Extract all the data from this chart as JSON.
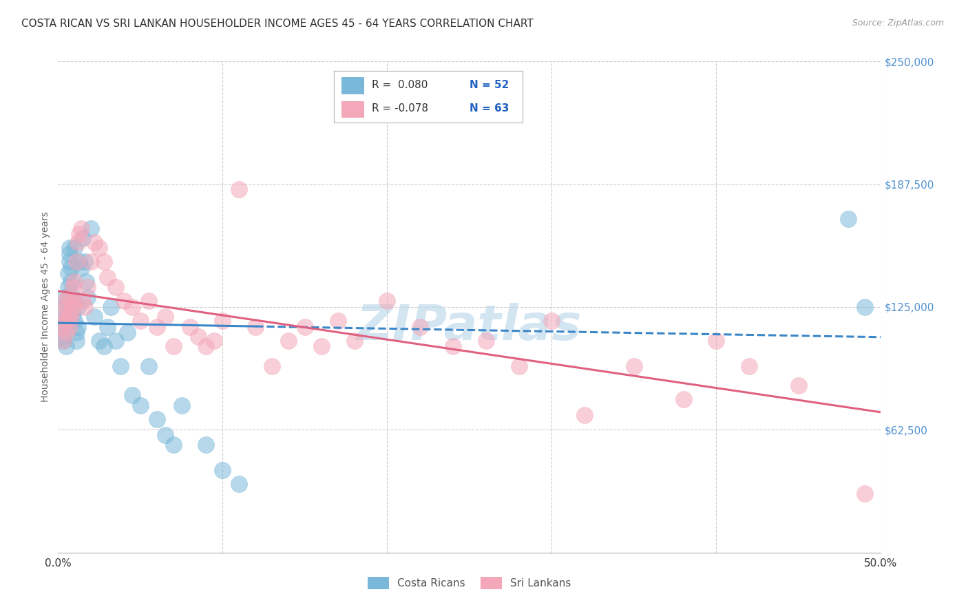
{
  "title": "COSTA RICAN VS SRI LANKAN HOUSEHOLDER INCOME AGES 45 - 64 YEARS CORRELATION CHART",
  "source": "Source: ZipAtlas.com",
  "ylabel": "Householder Income Ages 45 - 64 years",
  "xlim": [
    0.0,
    0.5
  ],
  "ylim": [
    0,
    250000
  ],
  "xticks": [
    0.0,
    0.1,
    0.2,
    0.3,
    0.4,
    0.5
  ],
  "xticklabels": [
    "0.0%",
    "",
    "",
    "",
    "",
    "50.0%"
  ],
  "ytick_positions": [
    0,
    62500,
    125000,
    187500,
    250000
  ],
  "ytick_labels": [
    "",
    "$62,500",
    "$125,000",
    "$187,500",
    "$250,000"
  ],
  "background_color": "#ffffff",
  "grid_color": "#cccccc",
  "title_color": "#333333",
  "title_fontsize": 11,
  "source_color": "#999999",
  "source_fontsize": 9,
  "watermark_text": "ZIPatlas",
  "watermark_color": "#b8d4ea",
  "legend_R1": "R =  0.080",
  "legend_N1": "N = 52",
  "legend_R2": "R = -0.078",
  "legend_N2": "N = 63",
  "blue_color": "#7ab8d9",
  "pink_color": "#f4a7b9",
  "line_blue_color": "#3a86c8",
  "line_pink_color": "#e06080",
  "legend_text_color": "#333333",
  "legend_value_color": "#2060c0",
  "yaxis_color": "#5090d0",
  "costa_rican_x": [
    0.002,
    0.003,
    0.003,
    0.004,
    0.004,
    0.005,
    0.005,
    0.005,
    0.006,
    0.006,
    0.006,
    0.007,
    0.007,
    0.007,
    0.008,
    0.008,
    0.008,
    0.009,
    0.009,
    0.01,
    0.01,
    0.011,
    0.011,
    0.012,
    0.012,
    0.013,
    0.014,
    0.015,
    0.016,
    0.017,
    0.018,
    0.02,
    0.022,
    0.025,
    0.028,
    0.03,
    0.032,
    0.035,
    0.038,
    0.042,
    0.045,
    0.05,
    0.055,
    0.06,
    0.065,
    0.07,
    0.075,
    0.09,
    0.1,
    0.11,
    0.48,
    0.49
  ],
  "costa_rican_y": [
    110000,
    125000,
    108000,
    130000,
    115000,
    120000,
    105000,
    118000,
    128000,
    135000,
    142000,
    148000,
    152000,
    155000,
    145000,
    138000,
    132000,
    128000,
    122000,
    118000,
    155000,
    112000,
    108000,
    115000,
    125000,
    148000,
    145000,
    160000,
    148000,
    138000,
    130000,
    165000,
    120000,
    108000,
    105000,
    115000,
    125000,
    108000,
    95000,
    112000,
    80000,
    75000,
    95000,
    68000,
    60000,
    55000,
    75000,
    55000,
    42000,
    35000,
    170000,
    125000
  ],
  "sri_lankan_x": [
    0.002,
    0.003,
    0.003,
    0.004,
    0.004,
    0.005,
    0.005,
    0.006,
    0.006,
    0.007,
    0.007,
    0.008,
    0.008,
    0.009,
    0.009,
    0.01,
    0.01,
    0.011,
    0.012,
    0.013,
    0.014,
    0.015,
    0.016,
    0.018,
    0.02,
    0.022,
    0.025,
    0.028,
    0.03,
    0.035,
    0.04,
    0.045,
    0.05,
    0.055,
    0.06,
    0.065,
    0.07,
    0.08,
    0.085,
    0.09,
    0.095,
    0.1,
    0.11,
    0.12,
    0.13,
    0.14,
    0.15,
    0.16,
    0.17,
    0.18,
    0.2,
    0.22,
    0.24,
    0.26,
    0.28,
    0.3,
    0.32,
    0.35,
    0.38,
    0.4,
    0.42,
    0.45,
    0.49
  ],
  "sri_lankan_y": [
    115000,
    120000,
    108000,
    128000,
    118000,
    125000,
    112000,
    130000,
    118000,
    122000,
    115000,
    128000,
    120000,
    135000,
    125000,
    138000,
    128000,
    148000,
    158000,
    162000,
    165000,
    128000,
    125000,
    135000,
    148000,
    158000,
    155000,
    148000,
    140000,
    135000,
    128000,
    125000,
    118000,
    128000,
    115000,
    120000,
    105000,
    115000,
    110000,
    105000,
    108000,
    118000,
    185000,
    115000,
    95000,
    108000,
    115000,
    105000,
    118000,
    108000,
    128000,
    115000,
    105000,
    108000,
    95000,
    118000,
    70000,
    95000,
    78000,
    108000,
    95000,
    85000,
    30000
  ]
}
